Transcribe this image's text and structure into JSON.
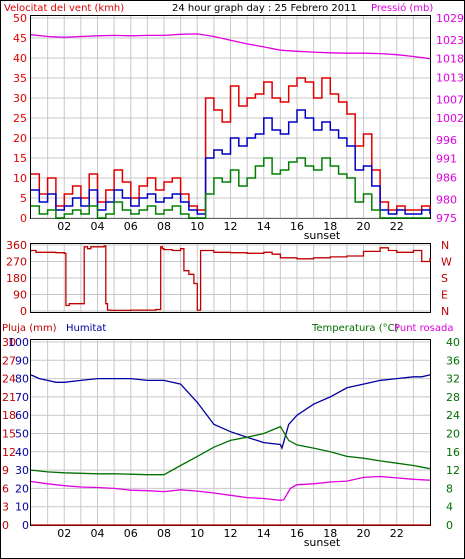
{
  "header": {
    "title": "24 hour graph day : 25 Febrero 2011",
    "wind_label": "Velocitat del vent (kmh)",
    "pressure_label": "Pressió (mb)",
    "rain_label": "Pluja (mm)",
    "humidity_label": "Humitat",
    "temp_label": "Temperatura (°C)",
    "dew_label": "Punt rosada"
  },
  "colors": {
    "wind_gust": "#e00000",
    "wind_avg": "#0000c0",
    "wind_low": "#008000",
    "pressure": "#e000e0",
    "direction": "#c00000",
    "humidity": "#0000a0",
    "temperature": "#007000",
    "dew": "#e000e0",
    "rain": "#c00000",
    "grid": "#c8c8c8"
  },
  "chart_data": [
    {
      "type": "line",
      "title": "24 hour graph day : 25 Febrero 2011",
      "x_ticks": [
        "02",
        "04",
        "06",
        "08",
        "10",
        "12",
        "14",
        "16",
        "18",
        "20",
        "22"
      ],
      "x_marker": "sunset",
      "x_range": [
        0,
        24
      ],
      "ylabel_left": "Velocitat del vent (kmh)",
      "ylabel_right": "Pressió (mb)",
      "ylim_left": [
        0,
        50
      ],
      "ylim_right": [
        975,
        1029
      ],
      "left_ticks": [
        0,
        5,
        10,
        15,
        20,
        25,
        30,
        35,
        40,
        45,
        50
      ],
      "right_ticks": [
        975,
        980,
        986,
        991,
        996,
        1002,
        1007,
        1013,
        1018,
        1023,
        1029
      ],
      "series": [
        {
          "name": "gust",
          "axis": "left",
          "x": [
            0,
            0.5,
            1,
            1.5,
            2,
            2.5,
            3,
            3.5,
            4,
            4.5,
            5,
            5.5,
            6,
            6.5,
            7,
            7.5,
            8,
            8.5,
            9,
            9.5,
            10,
            10.5,
            11,
            11.5,
            12,
            12.5,
            13,
            13.5,
            14,
            14.5,
            15,
            15.5,
            16,
            16.5,
            17,
            17.5,
            18,
            18.5,
            19,
            19.5,
            20,
            20.5,
            21,
            21.5,
            22,
            22.5,
            23,
            23.5,
            24
          ],
          "values": [
            11,
            6,
            10,
            3,
            6,
            8,
            5,
            11,
            4,
            7,
            12,
            9,
            5,
            8,
            10,
            7,
            9,
            10,
            6,
            3,
            2,
            30,
            27,
            24,
            33,
            28,
            30,
            31,
            34,
            30,
            29,
            33,
            35,
            34,
            30,
            35,
            31,
            29,
            26,
            18,
            21,
            12,
            4,
            2,
            3,
            2,
            2,
            3,
            2
          ]
        },
        {
          "name": "average",
          "axis": "left",
          "x": [
            0,
            0.5,
            1,
            1.5,
            2,
            2.5,
            3,
            3.5,
            4,
            4.5,
            5,
            5.5,
            6,
            6.5,
            7,
            7.5,
            8,
            8.5,
            9,
            9.5,
            10,
            10.5,
            11,
            11.5,
            12,
            12.5,
            13,
            13.5,
            14,
            14.5,
            15,
            15.5,
            16,
            16.5,
            17,
            17.5,
            18,
            18.5,
            19,
            19.5,
            20,
            20.5,
            21,
            21.5,
            22,
            22.5,
            23,
            23.5,
            24
          ],
          "values": [
            7,
            4,
            6,
            2,
            3,
            5,
            3,
            7,
            2,
            4,
            7,
            5,
            3,
            5,
            6,
            4,
            5,
            6,
            4,
            2,
            1,
            15,
            17,
            16,
            20,
            18,
            20,
            21,
            25,
            22,
            21,
            24,
            27,
            25,
            22,
            24,
            22,
            20,
            18,
            12,
            13,
            8,
            2,
            1,
            2,
            1,
            1,
            2,
            1
          ]
        },
        {
          "name": "lowest",
          "axis": "left",
          "x": [
            0,
            0.5,
            1,
            1.5,
            2,
            2.5,
            3,
            3.5,
            4,
            4.5,
            5,
            5.5,
            6,
            6.5,
            7,
            7.5,
            8,
            8.5,
            9,
            9.5,
            10,
            10.5,
            11,
            11.5,
            12,
            12.5,
            13,
            13.5,
            14,
            14.5,
            15,
            15.5,
            16,
            16.5,
            17,
            17.5,
            18,
            18.5,
            19,
            19.5,
            20,
            20.5,
            21,
            21.5,
            22,
            22.5,
            23,
            23.5,
            24
          ],
          "values": [
            3,
            1,
            2,
            0,
            1,
            2,
            1,
            3,
            0,
            1,
            4,
            2,
            1,
            2,
            3,
            1,
            2,
            3,
            1,
            0,
            0,
            6,
            10,
            9,
            12,
            8,
            10,
            13,
            15,
            11,
            12,
            14,
            15,
            13,
            12,
            15,
            13,
            11,
            10,
            4,
            6,
            2,
            0,
            0,
            0,
            0,
            0,
            0,
            0
          ]
        },
        {
          "name": "pressure",
          "axis": "right",
          "x": [
            0,
            1,
            2,
            3,
            4,
            5,
            6,
            7,
            8,
            9,
            10,
            11,
            12,
            13,
            14,
            15,
            16,
            17,
            18,
            19,
            20,
            21,
            22,
            23,
            24
          ],
          "values": [
            1024.5,
            1024,
            1023.8,
            1024,
            1024.2,
            1024.3,
            1024.2,
            1024.3,
            1024.3,
            1024.6,
            1024.7,
            1024,
            1023,
            1022,
            1021.2,
            1020.3,
            1020,
            1019.8,
            1019.6,
            1019.5,
            1019.5,
            1019.4,
            1019.1,
            1018.6,
            1018
          ]
        }
      ]
    },
    {
      "type": "line",
      "title": "",
      "x_range": [
        0,
        24
      ],
      "ylim": [
        0,
        360
      ],
      "left_ticks": [
        0,
        90,
        180,
        270,
        360
      ],
      "right_ticks": [
        "N",
        "W",
        "S",
        "E",
        "N"
      ],
      "series": [
        {
          "name": "direction",
          "x": [
            0,
            0.3,
            0.5,
            1.5,
            2.0,
            2.1,
            2.3,
            3.2,
            3.4,
            3.6,
            4.4,
            4.5,
            4.6,
            4.8,
            6.0,
            7.0,
            7.5,
            7.8,
            7.9,
            8.0,
            8.5,
            9.0,
            9.2,
            9.5,
            9.8,
            10.0,
            10.2,
            11,
            12,
            13,
            14,
            14.5,
            15,
            16,
            17,
            18,
            19,
            20,
            21,
            21.5,
            22,
            23,
            23.5,
            24
          ],
          "values": [
            330,
            320,
            320,
            318,
            315,
            30,
            40,
            350,
            340,
            350,
            355,
            40,
            5,
            3,
            5,
            5,
            8,
            350,
            340,
            335,
            330,
            340,
            220,
            200,
            150,
            5,
            330,
            320,
            318,
            315,
            320,
            310,
            290,
            285,
            290,
            295,
            300,
            325,
            345,
            330,
            320,
            330,
            270,
            290
          ]
        }
      ]
    },
    {
      "type": "line",
      "title": "",
      "x_range": [
        0,
        24
      ],
      "ylabel_left": "Pluja (mm)",
      "ylabel_left2": "Humitat",
      "ylabel_right": "Temperatura (°C)",
      "ylabel_right2": "Punt rosada",
      "rain_ticks": [
        0,
        3,
        6,
        9,
        12,
        15,
        18,
        21,
        24,
        27,
        30
      ],
      "humidity_ticks": [
        0,
        10,
        20,
        30,
        40,
        50,
        60,
        70,
        80,
        90,
        100
      ],
      "temp_ticks": [
        0,
        4,
        8,
        12,
        16,
        20,
        24,
        28,
        32,
        36,
        40
      ],
      "rain_lim": [
        0,
        30
      ],
      "humidity_lim": [
        0,
        100
      ],
      "temp_lim": [
        0,
        40
      ],
      "series": [
        {
          "name": "humidity",
          "axis": "humidity",
          "x": [
            0,
            0.5,
            1,
            1.5,
            2,
            3,
            4,
            5,
            6,
            7,
            8,
            9,
            10,
            11,
            12,
            13,
            14,
            15,
            15.1,
            15.5,
            16,
            17,
            18,
            19,
            20,
            21,
            22,
            23,
            23.5,
            24
          ],
          "values": [
            82,
            80,
            79,
            78,
            78,
            79,
            80,
            80,
            80,
            79,
            79,
            77,
            67,
            55,
            51,
            48,
            45,
            44,
            42,
            55,
            60,
            66,
            70,
            75,
            77,
            79,
            80,
            81,
            81,
            82
          ]
        },
        {
          "name": "temperature",
          "axis": "temp",
          "x": [
            0,
            1,
            2,
            3,
            4,
            5,
            6,
            7,
            8,
            9,
            10,
            11,
            12,
            13,
            14,
            15,
            15.5,
            16,
            17,
            18,
            19,
            20,
            21,
            22,
            23,
            24
          ],
          "values": [
            12.0,
            11.6,
            11.4,
            11.3,
            11.2,
            11.2,
            11.1,
            11.0,
            11.0,
            13.0,
            15.0,
            17.0,
            18.5,
            19.2,
            20.0,
            21.5,
            18.5,
            17.5,
            16.8,
            16.0,
            15.0,
            14.6,
            14.0,
            13.5,
            13.0,
            12.3
          ]
        },
        {
          "name": "dew_point",
          "axis": "temp",
          "x": [
            0,
            1,
            2,
            3,
            4,
            5,
            6,
            7,
            8,
            9,
            10,
            11,
            12,
            13,
            14,
            15,
            15.2,
            15.6,
            16,
            17,
            18,
            19,
            20,
            21,
            22,
            23,
            24
          ],
          "values": [
            9.5,
            9.0,
            8.6,
            8.3,
            8.2,
            8.0,
            7.6,
            7.5,
            7.3,
            7.7,
            7.4,
            7.0,
            6.5,
            6.0,
            5.8,
            5.4,
            5.5,
            8.0,
            8.8,
            9.0,
            9.4,
            9.6,
            10.4,
            10.6,
            10.3,
            10.0,
            9.8
          ]
        },
        {
          "name": "rain",
          "axis": "rain",
          "x": [
            0,
            24
          ],
          "values": [
            0,
            0
          ]
        }
      ]
    }
  ]
}
